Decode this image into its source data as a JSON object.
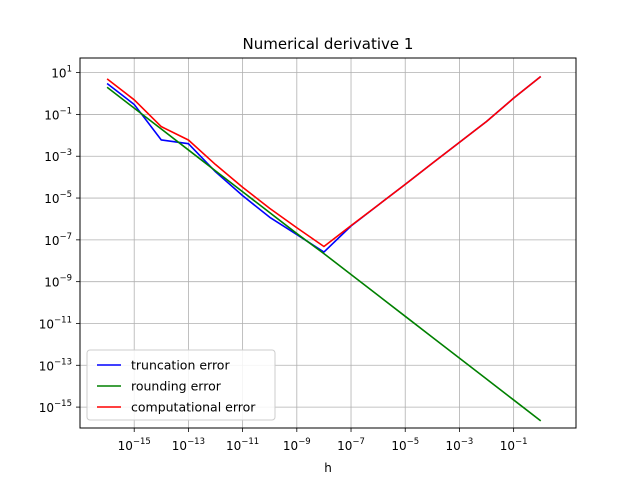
{
  "chart_data": {
    "type": "line",
    "title": "Numerical derivative 1",
    "xlabel": "h",
    "ylabel": "",
    "x_scale": "log",
    "y_scale": "log",
    "xlim": [
      1e-17,
      20
    ],
    "ylim": [
      1e-16,
      50
    ],
    "grid": true,
    "legend_position": "lower-left",
    "x_ticks": [
      {
        "base": "10",
        "exp": "−15",
        "value": 1e-15
      },
      {
        "base": "10",
        "exp": "−13",
        "value": 1e-13
      },
      {
        "base": "10",
        "exp": "−11",
        "value": 1e-11
      },
      {
        "base": "10",
        "exp": "−9",
        "value": 1e-09
      },
      {
        "base": "10",
        "exp": "−7",
        "value": 1e-07
      },
      {
        "base": "10",
        "exp": "−5",
        "value": 1e-05
      },
      {
        "base": "10",
        "exp": "−3",
        "value": 0.001
      },
      {
        "base": "10",
        "exp": "−1",
        "value": 0.1
      }
    ],
    "y_ticks": [
      {
        "base": "10",
        "exp": "1",
        "value": 10
      },
      {
        "base": "10",
        "exp": "−1",
        "value": 0.1
      },
      {
        "base": "10",
        "exp": "−3",
        "value": 0.001
      },
      {
        "base": "10",
        "exp": "−5",
        "value": 1e-05
      },
      {
        "base": "10",
        "exp": "−7",
        "value": 1e-07
      },
      {
        "base": "10",
        "exp": "−9",
        "value": 1e-09
      },
      {
        "base": "10",
        "exp": "−11",
        "value": 1e-11
      },
      {
        "base": "10",
        "exp": "−13",
        "value": 1e-13
      },
      {
        "base": "10",
        "exp": "−15",
        "value": 1e-15
      }
    ],
    "series": [
      {
        "name": "truncation error",
        "color": "#0000ff",
        "x": [
          1e-16,
          1e-15,
          1e-14,
          1e-13,
          1e-12,
          1e-11,
          1e-10,
          1e-09,
          1e-08,
          1e-07,
          1e-06,
          1e-05,
          0.0001,
          0.001,
          0.01,
          0.1,
          1
        ],
        "y": [
          3.0,
          0.3,
          0.006,
          0.004,
          0.00018,
          1.3e-05,
          1.2e-06,
          1.8e-07,
          2.6e-08,
          4.6e-07,
          4.6e-06,
          4.5e-05,
          0.00046,
          0.0046,
          0.046,
          0.6,
          6.5
        ]
      },
      {
        "name": "rounding error",
        "color": "#008000",
        "x": [
          1e-16,
          1e-15,
          1e-14,
          1e-13,
          1e-12,
          1e-11,
          1e-10,
          1e-09,
          1e-08,
          1e-07,
          1e-06,
          1e-05,
          0.0001,
          0.001,
          0.01,
          0.1,
          1
        ],
        "y": [
          2.0,
          0.2,
          0.02,
          0.002,
          0.0002,
          2e-05,
          2e-06,
          2e-07,
          2.2e-08,
          2.2e-09,
          2.2e-10,
          2.2e-11,
          2.2e-12,
          2.2e-13,
          2.2e-14,
          2.2e-15,
          2.2e-16
        ]
      },
      {
        "name": "computational error",
        "color": "#ff0000",
        "x": [
          1e-16,
          1e-15,
          1e-14,
          1e-13,
          1e-12,
          1e-11,
          1e-10,
          1e-09,
          1e-08,
          1e-07,
          1e-06,
          1e-05,
          0.0001,
          0.001,
          0.01,
          0.1,
          1
        ],
        "y": [
          5.0,
          0.5,
          0.026,
          0.006,
          0.0004,
          3.3e-05,
          3.2e-06,
          3.8e-07,
          4.8e-08,
          4.8e-07,
          4.6e-06,
          4.5e-05,
          0.00046,
          0.0046,
          0.046,
          0.6,
          6.5
        ]
      }
    ]
  }
}
